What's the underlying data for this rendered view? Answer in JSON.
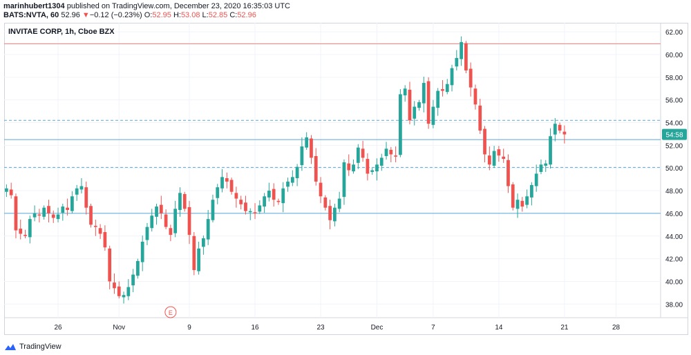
{
  "header": {
    "user": "marinhubert1304",
    "published": " published on TradingView.com, December 23, 2020 16:35:03 UTC",
    "symbol": "BATS:NVTA, 60",
    "last": "52.96",
    "change_arrow": "▼",
    "change": "−0.12 (−0.23%)",
    "o_label": "O:",
    "o_val": "52.95",
    "h_label": "H:",
    "h_val": "53.08",
    "l_label": "L:",
    "l_val": "52.85",
    "c_label": "C:",
    "c_val": "52.96"
  },
  "legend": "INVITAE CORP, 1h, Cboe BZX",
  "footer": {
    "brand": "TradingView"
  },
  "colors": {
    "up": "#26a69a",
    "down": "#ef5350",
    "hline": "#5aa7d6",
    "resistance": "#f07c7c",
    "badge": "#26a69a"
  },
  "chart_data": {
    "type": "candlestick",
    "ylim": [
      36.8,
      62.8
    ],
    "yticks": [
      "62.00",
      "60.00",
      "58.00",
      "56.00",
      "54.00",
      "52.00",
      "50.00",
      "48.00",
      "46.00",
      "44.00",
      "42.00",
      "40.00",
      "38.00"
    ],
    "xticks": [
      {
        "label": "26",
        "idx": 11
      },
      {
        "label": "Nov",
        "idx": 24
      },
      {
        "label": "9",
        "idx": 39
      },
      {
        "label": "16",
        "idx": 53
      },
      {
        "label": "23",
        "idx": 67
      },
      {
        "label": "Dec",
        "idx": 79
      },
      {
        "label": "7",
        "idx": 91
      },
      {
        "label": "14",
        "idx": 105
      },
      {
        "label": "21",
        "idx": 119
      },
      {
        "label": "28",
        "idx": 130
      }
    ],
    "price_badge": {
      "label": "54:58",
      "value": 52.96
    },
    "hlines": [
      {
        "value": 60.95,
        "style": "solid",
        "color": "resistance"
      },
      {
        "value": 54.2,
        "style": "dashed",
        "color": "hline"
      },
      {
        "value": 52.5,
        "style": "solid",
        "color": "hline"
      },
      {
        "value": 50.05,
        "style": "dashed",
        "color": "hline"
      },
      {
        "value": 46.0,
        "style": "solid",
        "color": "hline"
      }
    ],
    "earnings_marker": {
      "label": "E",
      "idx": 35
    },
    "total_slots": 140,
    "closes": [
      48.2,
      47.6,
      44.5,
      44.2,
      44.0,
      45.5,
      46.0,
      45.8,
      46.5,
      46.0,
      45.6,
      45.9,
      46.6,
      46.3,
      47.5,
      48.2,
      48.4,
      46.5,
      45.0,
      44.8,
      44.2,
      43.0,
      40.0,
      39.4,
      38.7,
      38.8,
      39.5,
      40.6,
      41.8,
      43.5,
      44.8,
      45.8,
      46.6,
      46.0,
      44.8,
      44.1,
      46.4,
      47.8,
      46.4,
      44.1,
      41.0,
      42.9,
      43.8,
      45.5,
      47.2,
      48.3,
      49.2,
      48.8,
      47.9,
      47.3,
      46.8,
      46.2,
      46.2,
      46.0,
      46.7,
      47.5,
      48.0,
      47.2,
      47.0,
      48.2,
      48.8,
      49.2,
      50.1,
      51.9,
      52.7,
      50.9,
      48.8,
      47.5,
      46.5,
      45.4,
      46.5,
      47.3,
      50.5,
      49.8,
      50.3,
      51.8,
      50.9,
      49.5,
      49.8,
      50.3,
      50.9,
      51.7,
      51.2,
      51.0,
      56.5,
      57.0,
      54.2,
      55.4,
      55.8,
      57.5,
      53.9,
      55.4,
      56.8,
      56.8,
      57.4,
      58.8,
      59.7,
      61.1,
      58.6,
      57.1,
      55.6,
      53.3,
      51.2,
      50.3,
      51.5,
      51.1,
      50.8,
      48.4,
      46.5,
      47.2,
      46.6,
      47.5,
      48.5,
      49.5,
      50.3,
      50.4,
      52.8,
      53.9,
      53.3,
      52.96
    ]
  }
}
